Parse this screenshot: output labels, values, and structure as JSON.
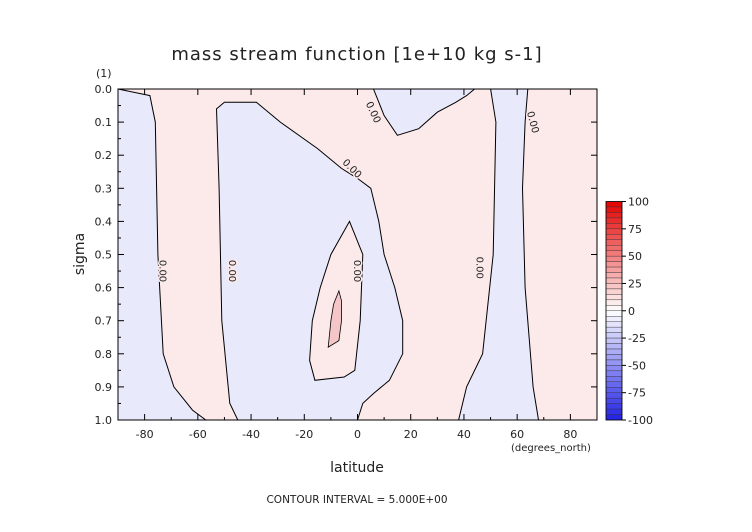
{
  "chart_data": {
    "type": "contour",
    "title": "mass stream function [1e+10 kg s-1]",
    "xlabel": "latitude",
    "x_units": "(degrees_north)",
    "ylabel": "sigma",
    "y_scale_note": "(1)",
    "xlim": [
      -90,
      90
    ],
    "ylim": [
      0.0,
      1.0
    ],
    "y_inverted": true,
    "x_ticks": [
      -80,
      -60,
      -40,
      -20,
      0,
      20,
      40,
      60,
      80
    ],
    "x_tick_labels": [
      "-80",
      "-60",
      "-40",
      "-20",
      "0",
      "20",
      "40",
      "60",
      "80"
    ],
    "y_ticks": [
      0.0,
      0.1,
      0.2,
      0.3,
      0.4,
      0.5,
      0.6,
      0.7,
      0.8,
      0.9,
      1.0
    ],
    "y_tick_labels": [
      "0.0",
      "0.1",
      "0.2",
      "0.3",
      "0.4",
      "0.5",
      "0.6",
      "0.7",
      "0.8",
      "0.9",
      "1.0"
    ],
    "contour_interval_text": "CONTOUR INTERVAL = 5.000E+00",
    "contour_labels": [
      {
        "text": "0.00",
        "lat": -73,
        "sigma": 0.55,
        "rotate": 90
      },
      {
        "text": "0.00",
        "lat": -47,
        "sigma": 0.55,
        "rotate": 90
      },
      {
        "text": "0.00",
        "lat": 0,
        "sigma": 0.55,
        "rotate": 90
      },
      {
        "text": "0.00",
        "lat": 46,
        "sigma": 0.54,
        "rotate": 90
      },
      {
        "text": "0.00",
        "lat": -2,
        "sigma": 0.24,
        "rotate": 45
      },
      {
        "text": "0.00",
        "lat": 6,
        "sigma": 0.07,
        "rotate": 65
      },
      {
        "text": "0.00",
        "lat": 66,
        "sigma": 0.1,
        "rotate": 75
      }
    ],
    "regions": [
      {
        "sign": "positive",
        "name": "background",
        "color": "#fce9ea",
        "path": [
          [
            -90,
            0
          ],
          [
            90,
            0
          ],
          [
            90,
            1
          ],
          [
            -90,
            1
          ]
        ]
      },
      {
        "sign": "negative",
        "name": "south-polar-cell",
        "color": "#e9e9fc",
        "path": [
          [
            -90,
            0
          ],
          [
            -78,
            0.02
          ],
          [
            -76,
            0.1
          ],
          [
            -75,
            0.5
          ],
          [
            -73,
            0.8
          ],
          [
            -69,
            0.9
          ],
          [
            -62,
            0.97
          ],
          [
            -57,
            1.0
          ],
          [
            -90,
            1.0
          ]
        ]
      },
      {
        "sign": "negative",
        "name": "southern-ferrel-cell",
        "color": "#e9e9fc",
        "path": [
          [
            -53,
            0.06
          ],
          [
            -50,
            0.04
          ],
          [
            -38,
            0.04
          ],
          [
            -29,
            0.1
          ],
          [
            -15,
            0.18
          ],
          [
            -6,
            0.24
          ],
          [
            0,
            0.27
          ],
          [
            5,
            0.3
          ],
          [
            8,
            0.4
          ],
          [
            10,
            0.5
          ],
          [
            14,
            0.6
          ],
          [
            17,
            0.7
          ],
          [
            17,
            0.8
          ],
          [
            12,
            0.88
          ],
          [
            6,
            0.92
          ],
          [
            2,
            0.95
          ],
          [
            0,
            1.0
          ],
          [
            -45,
            1.0
          ],
          [
            -48,
            0.95
          ],
          [
            -51,
            0.7
          ],
          [
            -52,
            0.3
          ]
        ]
      },
      {
        "sign": "positive",
        "name": "tropical-cell",
        "color": "#fce9ea",
        "path": [
          [
            -3,
            0.4
          ],
          [
            -10,
            0.5
          ],
          [
            -14,
            0.6
          ],
          [
            -17,
            0.7
          ],
          [
            -18,
            0.82
          ],
          [
            -16,
            0.88
          ],
          [
            -5,
            0.87
          ],
          [
            -1,
            0.85
          ],
          [
            1,
            0.7
          ],
          [
            2,
            0.5
          ]
        ]
      },
      {
        "sign": "positive",
        "name": "tropical-core",
        "color": "#f5c6c8",
        "path": [
          [
            -7,
            0.61
          ],
          [
            -9,
            0.65
          ],
          [
            -10,
            0.7
          ],
          [
            -11,
            0.78
          ],
          [
            -7,
            0.76
          ],
          [
            -6,
            0.7
          ],
          [
            -6,
            0.64
          ]
        ]
      },
      {
        "sign": "negative",
        "name": "upper-equatorial",
        "color": "#e9e9fc",
        "path": [
          [
            6,
            0.0
          ],
          [
            10,
            0.08
          ],
          [
            15,
            0.14
          ],
          [
            23,
            0.12
          ],
          [
            30,
            0.07
          ],
          [
            37,
            0.04
          ],
          [
            41,
            0.02
          ],
          [
            44,
            0.0
          ]
        ]
      },
      {
        "sign": "negative",
        "name": "northern-cell",
        "color": "#e9e9fc",
        "path": [
          [
            50,
            0.0
          ],
          [
            52,
            0.1
          ],
          [
            51,
            0.5
          ],
          [
            47,
            0.8
          ],
          [
            41,
            0.9
          ],
          [
            38,
            1.0
          ],
          [
            68,
            1.0
          ],
          [
            66,
            0.9
          ],
          [
            63,
            0.6
          ],
          [
            62,
            0.3
          ],
          [
            63,
            0.1
          ],
          [
            64,
            0.0
          ]
        ]
      }
    ],
    "colorbar": {
      "tick_values": [
        100,
        75,
        50,
        25,
        0,
        -25,
        -50,
        -75,
        -100
      ],
      "tick_labels": [
        "100",
        "75",
        "50",
        "25",
        "0",
        "-25",
        "-50",
        "-75",
        "-100"
      ],
      "min": -100,
      "max": 100,
      "positive_color": "#e40000",
      "negative_color": "#2020e6"
    }
  }
}
